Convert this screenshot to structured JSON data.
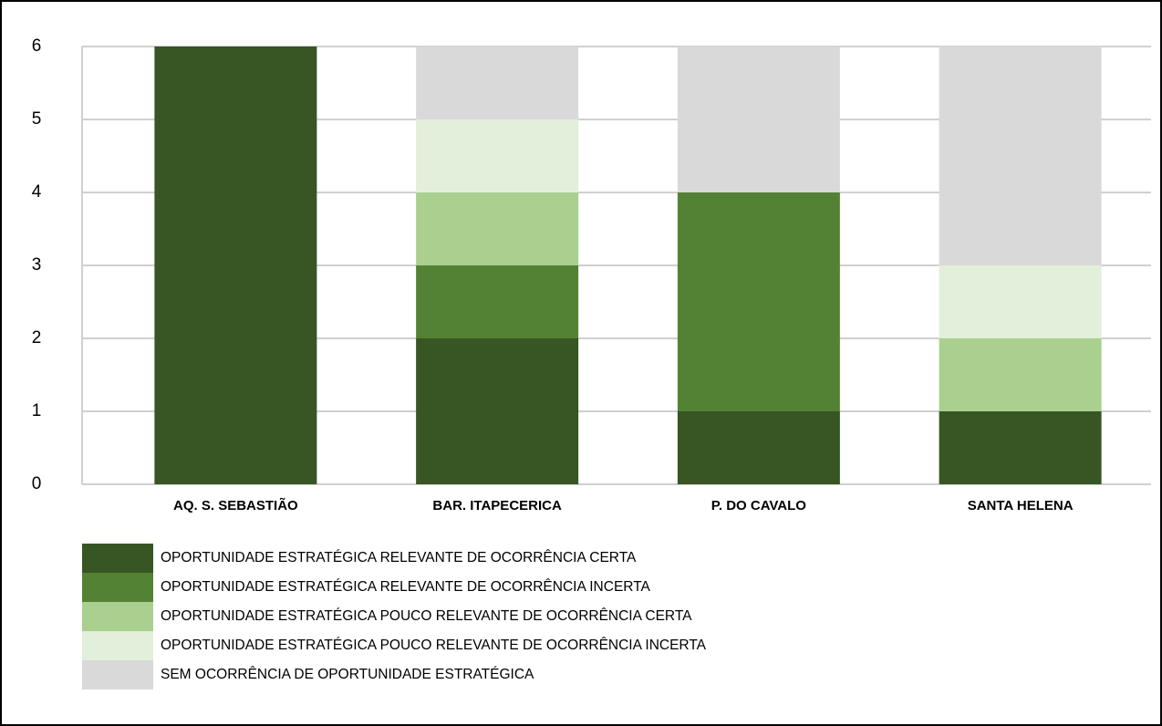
{
  "chart_data": {
    "type": "stacked_bar",
    "categories": [
      "AQ. S. SEBASTIÃO",
      "BAR. ITAPECERICA",
      "P. DO CAVALO",
      "SANTA HELENA"
    ],
    "series": [
      {
        "name": "OPORTUNIDADE ESTRATÉGICA RELEVANTE DE OCORRÊNCIA CERTA",
        "color": "#375623",
        "values": [
          6,
          2,
          1,
          1
        ]
      },
      {
        "name": "OPORTUNIDADE ESTRATÉGICA RELEVANTE DE OCORRÊNCIA INCERTA",
        "color": "#548235",
        "values": [
          0,
          1,
          3,
          0
        ]
      },
      {
        "name": "OPORTUNIDADE ESTRATÉGICA POUCO RELEVANTE DE OCORRÊNCIA CERTA",
        "color": "#a9d08e",
        "values": [
          0,
          1,
          0,
          1
        ]
      },
      {
        "name": "OPORTUNIDADE ESTRATÉGICA POUCO RELEVANTE DE OCORRÊNCIA INCERTA",
        "color": "#e2efda",
        "values": [
          0,
          1,
          0,
          1
        ]
      },
      {
        "name": "SEM OCORRÊNCIA DE OPORTUNIDADE ESTRATÉGICA",
        "color": "#d9d9d9",
        "values": [
          0,
          1,
          2,
          3
        ]
      }
    ],
    "ylim": [
      0,
      6
    ],
    "yticks": [
      0,
      1,
      2,
      3,
      4,
      5,
      6
    ],
    "grid": true,
    "legend": "bottom"
  }
}
